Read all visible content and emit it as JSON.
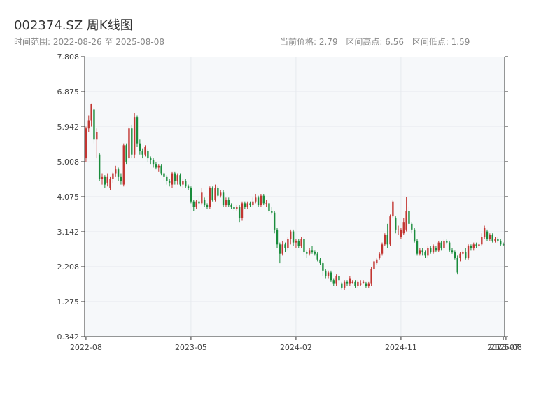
{
  "header": {
    "title": "002374.SZ 周K线图",
    "range_text": "时间范围: 2022-08-26 至 2025-08-08",
    "current_price_text": "当前价格: 2.79",
    "range_high_text": "区间高点: 6.56",
    "range_low_text": "区间低点: 1.59"
  },
  "colors": {
    "up": "#c23531",
    "down": "#1a8c3c",
    "axis": "#333333",
    "grid": "#e6e9ee",
    "plot_bg": "#f6f8fa"
  },
  "chart_data": {
    "type": "candlestick",
    "title": "002374.SZ 周K线图",
    "ylim": [
      0.342,
      7.808
    ],
    "y_ticks": [
      "7.808",
      "6.875",
      "5.942",
      "5.008",
      "4.075",
      "3.142",
      "2.208",
      "1.275",
      "0.342"
    ],
    "x_tick_labels": [
      "2022-08",
      "2023-05",
      "2024-02",
      "2024-11",
      "2025-07",
      "2025-08"
    ],
    "x_tick_index": [
      0,
      39,
      78,
      117,
      155,
      156
    ],
    "candles": [
      [
        5.1,
        5.9,
        5.95,
        5.0
      ],
      [
        5.9,
        6.1,
        6.25,
        5.8
      ],
      [
        6.1,
        6.55,
        6.56,
        5.95
      ],
      [
        6.4,
        5.6,
        6.45,
        5.5
      ],
      [
        5.6,
        5.8,
        5.9,
        5.1
      ],
      [
        5.2,
        4.55,
        5.25,
        4.5
      ],
      [
        4.55,
        4.6,
        4.7,
        4.4
      ],
      [
        4.6,
        4.4,
        4.65,
        4.3
      ],
      [
        4.45,
        4.6,
        4.7,
        4.35
      ],
      [
        4.3,
        4.55,
        4.6,
        4.25
      ],
      [
        4.55,
        4.7,
        4.75,
        4.45
      ],
      [
        4.7,
        4.8,
        4.9,
        4.6
      ],
      [
        4.8,
        4.6,
        4.85,
        4.5
      ],
      [
        4.6,
        4.5,
        4.7,
        4.4
      ],
      [
        4.4,
        5.45,
        5.5,
        4.35
      ],
      [
        5.45,
        5.0,
        5.5,
        4.95
      ],
      [
        5.1,
        5.9,
        5.95,
        5.0
      ],
      [
        5.9,
        5.2,
        6.0,
        5.1
      ],
      [
        5.2,
        6.2,
        6.3,
        5.1
      ],
      [
        6.2,
        5.5,
        6.25,
        5.4
      ],
      [
        5.5,
        5.3,
        5.6,
        5.2
      ],
      [
        5.3,
        5.2,
        5.35,
        5.1
      ],
      [
        5.2,
        5.4,
        5.45,
        5.15
      ],
      [
        5.3,
        5.1,
        5.35,
        5.0
      ],
      [
        5.1,
        5.05,
        5.15,
        4.95
      ],
      [
        5.05,
        4.95,
        5.1,
        4.85
      ],
      [
        4.95,
        4.85,
        5.0,
        4.8
      ],
      [
        4.85,
        4.9,
        4.95,
        4.75
      ],
      [
        4.9,
        4.7,
        4.95,
        4.65
      ],
      [
        4.7,
        4.6,
        4.75,
        4.5
      ],
      [
        4.6,
        4.5,
        4.65,
        4.4
      ],
      [
        4.5,
        4.45,
        4.55,
        4.35
      ],
      [
        4.4,
        4.7,
        4.75,
        4.3
      ],
      [
        4.7,
        4.5,
        4.75,
        4.4
      ],
      [
        4.5,
        4.65,
        4.7,
        4.4
      ],
      [
        4.65,
        4.4,
        4.7,
        4.35
      ],
      [
        4.4,
        4.5,
        4.55,
        4.3
      ],
      [
        4.5,
        4.35,
        4.55,
        4.3
      ],
      [
        4.35,
        4.3,
        4.4,
        4.25
      ],
      [
        4.3,
        3.95,
        4.35,
        3.9
      ],
      [
        3.95,
        3.8,
        4.0,
        3.7
      ],
      [
        3.8,
        3.95,
        4.0,
        3.75
      ],
      [
        3.95,
        3.9,
        4.05,
        3.85
      ],
      [
        3.9,
        4.2,
        4.3,
        3.85
      ],
      [
        4.0,
        3.85,
        4.05,
        3.8
      ],
      [
        3.85,
        3.8,
        3.9,
        3.75
      ],
      [
        3.8,
        4.3,
        4.35,
        3.75
      ],
      [
        4.3,
        4.0,
        4.35,
        3.95
      ],
      [
        4.0,
        4.3,
        4.4,
        3.95
      ],
      [
        4.3,
        4.1,
        4.35,
        4.05
      ],
      [
        4.1,
        4.2,
        4.25,
        4.05
      ],
      [
        4.2,
        3.85,
        4.25,
        3.8
      ],
      [
        3.85,
        4.0,
        4.05,
        3.8
      ],
      [
        4.0,
        3.85,
        4.05,
        3.8
      ],
      [
        3.85,
        3.8,
        3.9,
        3.75
      ],
      [
        3.8,
        3.75,
        3.85,
        3.7
      ],
      [
        3.75,
        3.8,
        3.85,
        3.7
      ],
      [
        3.8,
        3.5,
        3.85,
        3.4
      ],
      [
        3.5,
        3.9,
        3.95,
        3.45
      ],
      [
        3.9,
        3.8,
        3.95,
        3.75
      ],
      [
        3.8,
        3.9,
        3.95,
        3.75
      ],
      [
        3.9,
        3.85,
        3.95,
        3.8
      ],
      [
        3.85,
        3.95,
        4.05,
        3.8
      ],
      [
        3.95,
        4.05,
        4.15,
        3.9
      ],
      [
        4.05,
        3.85,
        4.1,
        3.8
      ],
      [
        3.85,
        4.1,
        4.15,
        3.8
      ],
      [
        4.1,
        3.9,
        4.15,
        3.85
      ],
      [
        3.9,
        3.9,
        4.0,
        3.8
      ],
      [
        3.9,
        3.7,
        3.95,
        3.65
      ],
      [
        3.7,
        3.65,
        3.8,
        3.6
      ],
      [
        3.65,
        3.2,
        3.7,
        3.1
      ],
      [
        3.2,
        2.8,
        3.25,
        2.7
      ],
      [
        2.8,
        2.55,
        2.85,
        2.3
      ],
      [
        2.55,
        2.8,
        2.9,
        2.5
      ],
      [
        2.8,
        2.7,
        2.85,
        2.6
      ],
      [
        2.7,
        2.95,
        3.0,
        2.65
      ],
      [
        2.95,
        3.15,
        3.2,
        2.8
      ],
      [
        3.15,
        2.85,
        3.2,
        2.75
      ],
      [
        2.85,
        2.9,
        2.95,
        2.7
      ],
      [
        2.9,
        2.75,
        2.95,
        2.7
      ],
      [
        2.75,
        2.95,
        3.0,
        2.7
      ],
      [
        2.95,
        2.6,
        3.0,
        2.5
      ],
      [
        2.6,
        2.55,
        2.65,
        2.45
      ],
      [
        2.55,
        2.65,
        2.7,
        2.5
      ],
      [
        2.65,
        2.6,
        2.75,
        2.55
      ],
      [
        2.6,
        2.55,
        2.65,
        2.5
      ],
      [
        2.55,
        2.4,
        2.6,
        2.35
      ],
      [
        2.4,
        2.3,
        2.45,
        2.25
      ],
      [
        2.3,
        2.1,
        2.35,
        1.95
      ],
      [
        2.1,
        1.95,
        2.15,
        1.9
      ],
      [
        1.95,
        2.05,
        2.1,
        1.9
      ],
      [
        2.05,
        1.85,
        2.1,
        1.8
      ],
      [
        1.85,
        1.75,
        1.9,
        1.7
      ],
      [
        1.75,
        1.95,
        2.0,
        1.7
      ],
      [
        1.95,
        1.85,
        2.0,
        1.75
      ],
      [
        1.75,
        1.65,
        1.8,
        1.6
      ],
      [
        1.65,
        1.8,
        1.85,
        1.59
      ],
      [
        1.8,
        1.75,
        1.85,
        1.7
      ],
      [
        1.75,
        1.9,
        1.95,
        1.7
      ],
      [
        1.8,
        1.8,
        1.85,
        1.75
      ],
      [
        1.8,
        1.7,
        1.85,
        1.65
      ],
      [
        1.7,
        1.8,
        1.85,
        1.65
      ],
      [
        1.75,
        1.75,
        1.85,
        1.7
      ],
      [
        1.8,
        1.8,
        1.85,
        1.75
      ],
      [
        1.75,
        1.7,
        1.8,
        1.65
      ],
      [
        1.7,
        1.75,
        1.8,
        1.65
      ],
      [
        1.75,
        2.15,
        2.2,
        1.7
      ],
      [
        2.15,
        2.35,
        2.4,
        2.1
      ],
      [
        2.3,
        2.4,
        2.45,
        2.25
      ],
      [
        2.45,
        2.55,
        2.6,
        2.4
      ],
      [
        2.55,
        2.8,
        2.85,
        2.5
      ],
      [
        2.8,
        3.05,
        3.1,
        2.75
      ],
      [
        3.05,
        2.8,
        3.35,
        2.7
      ],
      [
        2.8,
        3.55,
        3.6,
        2.75
      ],
      [
        3.55,
        3.95,
        4.0,
        3.5
      ],
      [
        3.5,
        3.2,
        3.55,
        3.1
      ],
      [
        3.2,
        3.2,
        3.3,
        3.05
      ],
      [
        3.0,
        3.2,
        3.25,
        2.95
      ],
      [
        3.1,
        3.4,
        3.5,
        3.05
      ],
      [
        3.2,
        3.7,
        4.07,
        3.15
      ],
      [
        3.7,
        3.35,
        3.8,
        3.3
      ],
      [
        3.35,
        3.2,
        3.4,
        3.1
      ],
      [
        3.2,
        2.9,
        3.25,
        2.85
      ],
      [
        2.9,
        2.55,
        2.95,
        2.5
      ],
      [
        2.55,
        2.65,
        2.7,
        2.5
      ],
      [
        2.65,
        2.6,
        2.7,
        2.5
      ],
      [
        2.6,
        2.5,
        2.65,
        2.45
      ],
      [
        2.5,
        2.7,
        2.75,
        2.45
      ],
      [
        2.7,
        2.6,
        2.75,
        2.55
      ],
      [
        2.6,
        2.75,
        2.8,
        2.55
      ],
      [
        2.7,
        2.65,
        2.75,
        2.6
      ],
      [
        2.65,
        2.85,
        2.9,
        2.6
      ],
      [
        2.85,
        2.7,
        2.9,
        2.65
      ],
      [
        2.7,
        2.9,
        2.95,
        2.65
      ],
      [
        2.9,
        2.85,
        2.95,
        2.8
      ],
      [
        2.85,
        2.65,
        2.9,
        2.6
      ],
      [
        2.65,
        2.6,
        2.7,
        2.55
      ],
      [
        2.6,
        2.45,
        2.65,
        2.4
      ],
      [
        2.45,
        2.05,
        2.5,
        2.0
      ],
      [
        2.45,
        2.55,
        2.6,
        2.35
      ],
      [
        2.55,
        2.6,
        2.65,
        2.5
      ],
      [
        2.6,
        2.45,
        2.7,
        2.4
      ],
      [
        2.45,
        2.75,
        2.8,
        2.4
      ],
      [
        2.75,
        2.7,
        2.8,
        2.65
      ],
      [
        2.7,
        2.8,
        2.85,
        2.65
      ],
      [
        2.8,
        2.75,
        2.85,
        2.7
      ],
      [
        2.75,
        2.8,
        2.85,
        2.7
      ],
      [
        2.8,
        3.0,
        3.1,
        2.75
      ],
      [
        3.0,
        3.25,
        3.3,
        2.95
      ],
      [
        3.15,
        2.95,
        3.2,
        2.9
      ],
      [
        2.95,
        3.05,
        3.1,
        2.9
      ],
      [
        3.05,
        2.9,
        3.1,
        2.85
      ],
      [
        2.9,
        2.95,
        3.0,
        2.85
      ],
      [
        2.95,
        2.9,
        3.0,
        2.85
      ],
      [
        2.9,
        2.8,
        2.95,
        2.75
      ],
      [
        2.8,
        2.79,
        2.85,
        2.75
      ]
    ]
  }
}
